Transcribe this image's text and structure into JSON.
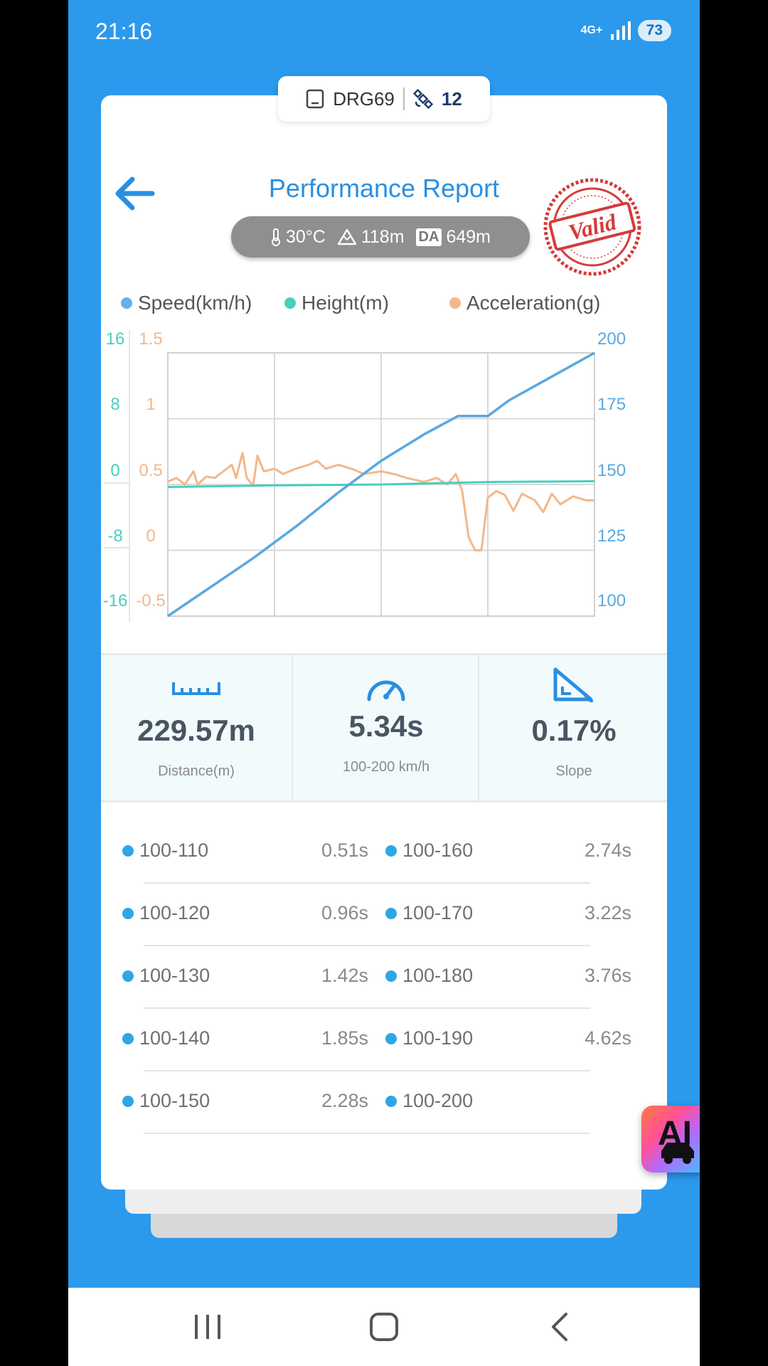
{
  "status_bar": {
    "time": "21:16",
    "network": "4G+",
    "battery": "73"
  },
  "device_tab": {
    "device_name": "DRG69",
    "satellites": "12"
  },
  "header": {
    "title": "Performance Report",
    "stamp": "Valid"
  },
  "conditions": {
    "temperature": "30°C",
    "altitude": "118m",
    "da_label": "DA",
    "density_altitude": "649m"
  },
  "legend": [
    {
      "label": "Speed(km/h)",
      "color": "#6aaee8"
    },
    {
      "label": "Height(m)",
      "color": "#46cfc0"
    },
    {
      "label": "Acceleration(g)",
      "color": "#f3b78a"
    }
  ],
  "chart_data": {
    "type": "line",
    "series": [
      {
        "name": "Speed(km/h)",
        "axis": "right",
        "color": "#5aa8e0",
        "points": [
          [
            0,
            100
          ],
          [
            0.1,
            111
          ],
          [
            0.2,
            122
          ],
          [
            0.3,
            134
          ],
          [
            0.4,
            147
          ],
          [
            0.5,
            159
          ],
          [
            0.6,
            169
          ],
          [
            0.68,
            176
          ],
          [
            0.75,
            176
          ],
          [
            0.8,
            182
          ],
          [
            0.9,
            191
          ],
          [
            1.0,
            200
          ]
        ]
      },
      {
        "name": "Height(m)",
        "axis": "left_height",
        "color": "#46cfc0",
        "points": [
          [
            0,
            -0.3
          ],
          [
            0.25,
            -0.1
          ],
          [
            0.5,
            0
          ],
          [
            0.75,
            0.3
          ],
          [
            1.0,
            0.4
          ]
        ]
      },
      {
        "name": "Acceleration(g)",
        "axis": "left_accel",
        "color": "#f3b78a",
        "points": [
          [
            0,
            0.52
          ],
          [
            0.02,
            0.55
          ],
          [
            0.04,
            0.5
          ],
          [
            0.06,
            0.6
          ],
          [
            0.07,
            0.5
          ],
          [
            0.09,
            0.56
          ],
          [
            0.11,
            0.55
          ],
          [
            0.13,
            0.6
          ],
          [
            0.15,
            0.65
          ],
          [
            0.16,
            0.55
          ],
          [
            0.175,
            0.74
          ],
          [
            0.185,
            0.55
          ],
          [
            0.2,
            0.49
          ],
          [
            0.21,
            0.72
          ],
          [
            0.225,
            0.6
          ],
          [
            0.25,
            0.62
          ],
          [
            0.27,
            0.58
          ],
          [
            0.3,
            0.62
          ],
          [
            0.33,
            0.65
          ],
          [
            0.35,
            0.68
          ],
          [
            0.37,
            0.62
          ],
          [
            0.4,
            0.65
          ],
          [
            0.43,
            0.62
          ],
          [
            0.46,
            0.58
          ],
          [
            0.5,
            0.6
          ],
          [
            0.53,
            0.58
          ],
          [
            0.56,
            0.55
          ],
          [
            0.6,
            0.52
          ],
          [
            0.63,
            0.55
          ],
          [
            0.655,
            0.5
          ],
          [
            0.675,
            0.58
          ],
          [
            0.69,
            0.45
          ],
          [
            0.705,
            0.1
          ],
          [
            0.72,
            0.0
          ],
          [
            0.735,
            0.0
          ],
          [
            0.75,
            0.4
          ],
          [
            0.77,
            0.45
          ],
          [
            0.79,
            0.42
          ],
          [
            0.81,
            0.3
          ],
          [
            0.83,
            0.43
          ],
          [
            0.86,
            0.38
          ],
          [
            0.88,
            0.29
          ],
          [
            0.9,
            0.43
          ],
          [
            0.92,
            0.35
          ],
          [
            0.95,
            0.41
          ],
          [
            0.98,
            0.38
          ],
          [
            1.0,
            0.38
          ]
        ]
      }
    ],
    "axes": {
      "left_height": {
        "ticks": [
          "16",
          "8",
          "0",
          "-8",
          "-16"
        ],
        "range": [
          -16,
          16
        ],
        "color": "#46cfc0"
      },
      "left_accel": {
        "ticks": [
          "1.5",
          "1",
          "0.5",
          "0",
          "-0.5"
        ],
        "range": [
          -0.5,
          1.5
        ],
        "color": "#f3b78a"
      },
      "right_speed": {
        "ticks": [
          "200",
          "175",
          "150",
          "125",
          "100"
        ],
        "range": [
          100,
          200
        ],
        "color": "#5aa8e0"
      }
    },
    "grid": true
  },
  "summary": [
    {
      "icon": "ruler-icon",
      "value": "229.57m",
      "label": "Distance(m)"
    },
    {
      "icon": "speedometer-icon",
      "value": "5.34s",
      "label": "100-200 km/h"
    },
    {
      "icon": "slope-icon",
      "value": "0.17%",
      "label": "Slope"
    }
  ],
  "splits": [
    {
      "left_label": "100-110",
      "left_time": "0.51s",
      "right_label": "100-160",
      "right_time": "2.74s"
    },
    {
      "left_label": "100-120",
      "left_time": "0.96s",
      "right_label": "100-170",
      "right_time": "3.22s"
    },
    {
      "left_label": "100-130",
      "left_time": "1.42s",
      "right_label": "100-180",
      "right_time": "3.76s"
    },
    {
      "left_label": "100-140",
      "left_time": "1.85s",
      "right_label": "100-190",
      "right_time": "4.62s"
    },
    {
      "left_label": "100-150",
      "left_time": "2.28s",
      "right_label": "100-200",
      "right_time": ""
    }
  ],
  "ai_button": {
    "label": "AI"
  }
}
